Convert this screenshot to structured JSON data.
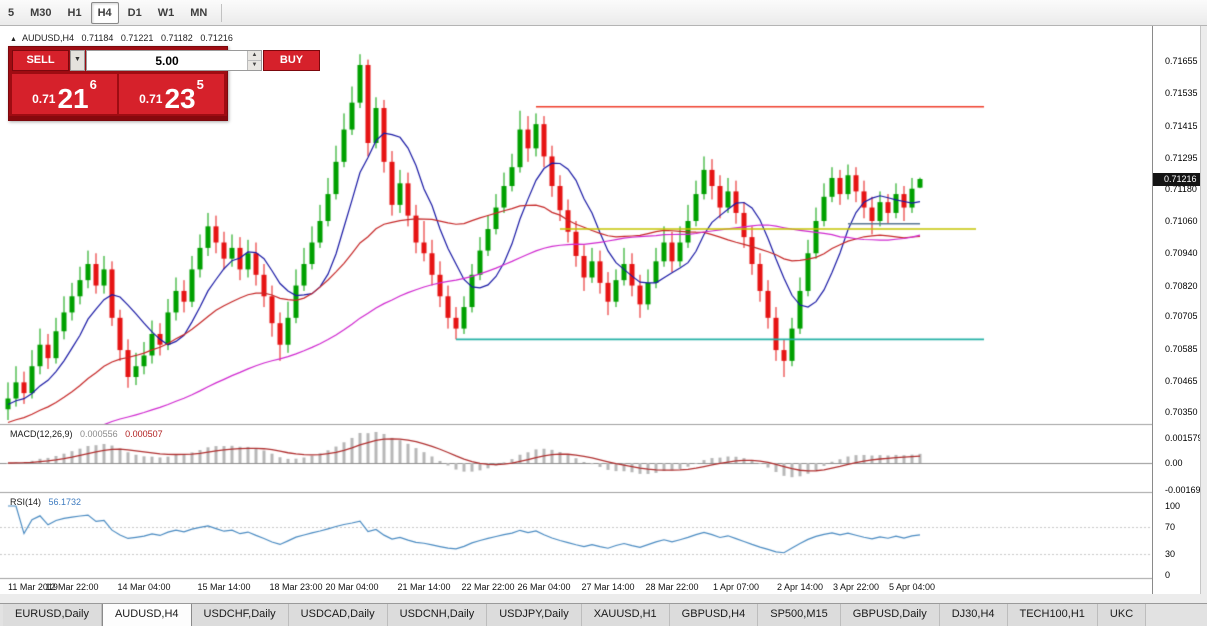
{
  "toolbar": {
    "timeframes": [
      {
        "label": "5",
        "active": false
      },
      {
        "label": "M30",
        "active": false
      },
      {
        "label": "H1",
        "active": false
      },
      {
        "label": "H4",
        "active": true
      },
      {
        "label": "D1",
        "active": false
      },
      {
        "label": "W1",
        "active": false
      },
      {
        "label": "MN",
        "active": false
      }
    ]
  },
  "chart_header": {
    "icon": "▲",
    "symbol_period": "AUDUSD,H4",
    "open": "0.71184",
    "high": "0.71221",
    "low": "0.71182",
    "close": "0.71216"
  },
  "trade_panel": {
    "volume": "5.00",
    "sell": {
      "label": "SELL",
      "price_prefix": "0.71",
      "price_main": "21",
      "price_sup": "6"
    },
    "buy": {
      "label": "BUY",
      "price_prefix": "0.71",
      "price_main": "23",
      "price_sup": "5"
    },
    "combo_arrow": "▼",
    "spin_up": "▲",
    "spin_down": "▼"
  },
  "price_axis": {
    "current": "0.71216",
    "ticks": [
      "0.71655",
      "0.71535",
      "0.71415",
      "0.71295",
      "0.71180",
      "0.71060",
      "0.70940",
      "0.70820",
      "0.70705",
      "0.70585",
      "0.70465",
      "0.70350"
    ]
  },
  "time_axis": {
    "labels": [
      {
        "text": "11 Mar 2019",
        "i": 0
      },
      {
        "text": "12 Mar 22:00",
        "i": 8
      },
      {
        "text": "14 Mar 04:00",
        "i": 17
      },
      {
        "text": "15 Mar 14:00",
        "i": 27
      },
      {
        "text": "18 Mar 23:00",
        "i": 36
      },
      {
        "text": "20 Mar 04:00",
        "i": 43
      },
      {
        "text": "21 Mar 14:00",
        "i": 52
      },
      {
        "text": "22 Mar 22:00",
        "i": 60
      },
      {
        "text": "26 Mar 04:00",
        "i": 67
      },
      {
        "text": "27 Mar 14:00",
        "i": 75
      },
      {
        "text": "28 Mar 22:00",
        "i": 83
      },
      {
        "text": "1 Apr 07:00",
        "i": 91
      },
      {
        "text": "2 Apr 14:00",
        "i": 99
      },
      {
        "text": "3 Apr 22:00",
        "i": 106
      },
      {
        "text": "5 Apr 04:00",
        "i": 113
      }
    ]
  },
  "indicators": {
    "macd": {
      "name": "MACD(12,26,9)",
      "value_main": "0.000556",
      "value_signal": "0.000507",
      "params": {
        "fast": 12,
        "slow": 26,
        "signal": 9
      },
      "axis": [
        "0.001579",
        "0.00",
        "-0.001692"
      ],
      "histogram_color": "#b8b8b8",
      "signal_color": "#b03030"
    },
    "rsi": {
      "name": "RSI(14)",
      "value": "56.1732",
      "period": 14,
      "levels": [
        70,
        30
      ],
      "axis": [
        "100",
        "70",
        "30",
        "0"
      ],
      "line_color": "#4a8bc2"
    }
  },
  "tabs": [
    {
      "label": "EURUSD,Daily",
      "active": false
    },
    {
      "label": "AUDUSD,H4",
      "active": true
    },
    {
      "label": "USDCHF,Daily",
      "active": false
    },
    {
      "label": "USDCAD,Daily",
      "active": false
    },
    {
      "label": "USDCNH,Daily",
      "active": false
    },
    {
      "label": "USDJPY,Daily",
      "active": false
    },
    {
      "label": "XAUUSD,H1",
      "active": false
    },
    {
      "label": "GBPUSD,H4",
      "active": false
    },
    {
      "label": "SP500,M15",
      "active": false
    },
    {
      "label": "GBPUSD,Daily",
      "active": false
    },
    {
      "label": "DJ30,H4",
      "active": false
    },
    {
      "label": "TECH100,H1",
      "active": false
    },
    {
      "label": "UKC",
      "active": false
    }
  ],
  "chart_data": {
    "type": "candlestick",
    "symbol": "AUDUSD",
    "timeframe": "H4",
    "y_range": {
      "min": 0.70297,
      "max": 0.71795
    },
    "colors": {
      "up": "#00a000",
      "down": "#e61414",
      "background": "#ffffff"
    },
    "moving_averages": [
      {
        "type": "sma",
        "period": 8,
        "color": "#1a1aa6"
      },
      {
        "type": "sma",
        "period": 24,
        "color": "#c62828"
      },
      {
        "type": "sma",
        "period": 60,
        "color": "#d028d0"
      }
    ],
    "objects": [
      {
        "type": "hline",
        "price": 0.71485,
        "from_bar": 66,
        "to_bar": 122,
        "color": "#f03c28"
      },
      {
        "type": "hline",
        "price": 0.7103,
        "from_bar": 69,
        "to_bar": 121,
        "color": "#c3c300"
      },
      {
        "type": "hline",
        "price": 0.7062,
        "from_bar": 56,
        "to_bar": 122,
        "color": "#26b3a7"
      },
      {
        "type": "hline",
        "price": 0.7105,
        "from_bar": 105,
        "to_bar": 114,
        "color": "#5a7894"
      }
    ],
    "candles": [
      [
        0.7036,
        0.7046,
        0.7032,
        0.704
      ],
      [
        0.704,
        0.7052,
        0.7037,
        0.7046
      ],
      [
        0.7046,
        0.705,
        0.7038,
        0.7042
      ],
      [
        0.7042,
        0.7058,
        0.704,
        0.7052
      ],
      [
        0.7052,
        0.7066,
        0.7049,
        0.706
      ],
      [
        0.706,
        0.7064,
        0.7051,
        0.7055
      ],
      [
        0.7055,
        0.707,
        0.7053,
        0.7065
      ],
      [
        0.7065,
        0.7078,
        0.7062,
        0.7072
      ],
      [
        0.7072,
        0.7083,
        0.7069,
        0.7078
      ],
      [
        0.7078,
        0.7089,
        0.7075,
        0.7084
      ],
      [
        0.7084,
        0.7095,
        0.7081,
        0.709
      ],
      [
        0.709,
        0.7094,
        0.7079,
        0.7082
      ],
      [
        0.7082,
        0.7093,
        0.7079,
        0.7088
      ],
      [
        0.7088,
        0.7091,
        0.7067,
        0.707
      ],
      [
        0.707,
        0.7073,
        0.7054,
        0.7058
      ],
      [
        0.7058,
        0.7062,
        0.7044,
        0.7048
      ],
      [
        0.7048,
        0.7057,
        0.7045,
        0.7052
      ],
      [
        0.7052,
        0.7061,
        0.7049,
        0.7056
      ],
      [
        0.7056,
        0.7069,
        0.7053,
        0.7064
      ],
      [
        0.7064,
        0.7068,
        0.7056,
        0.706
      ],
      [
        0.706,
        0.7077,
        0.7058,
        0.7072
      ],
      [
        0.7072,
        0.7085,
        0.7069,
        0.708
      ],
      [
        0.708,
        0.7084,
        0.7072,
        0.7076
      ],
      [
        0.7076,
        0.7093,
        0.7074,
        0.7088
      ],
      [
        0.7088,
        0.7101,
        0.7085,
        0.7096
      ],
      [
        0.7096,
        0.7109,
        0.7093,
        0.7104
      ],
      [
        0.7104,
        0.7108,
        0.7094,
        0.7098
      ],
      [
        0.7098,
        0.7102,
        0.7088,
        0.7092
      ],
      [
        0.7092,
        0.7101,
        0.7089,
        0.7096
      ],
      [
        0.7096,
        0.71,
        0.7084,
        0.7088
      ],
      [
        0.7088,
        0.7099,
        0.7085,
        0.7094
      ],
      [
        0.7094,
        0.7098,
        0.7082,
        0.7086
      ],
      [
        0.7086,
        0.709,
        0.7074,
        0.7078
      ],
      [
        0.7078,
        0.7082,
        0.7063,
        0.7068
      ],
      [
        0.7068,
        0.7072,
        0.7054,
        0.706
      ],
      [
        0.706,
        0.7076,
        0.7057,
        0.707
      ],
      [
        0.707,
        0.7088,
        0.7068,
        0.7082
      ],
      [
        0.7082,
        0.7096,
        0.708,
        0.709
      ],
      [
        0.709,
        0.7104,
        0.7088,
        0.7098
      ],
      [
        0.7098,
        0.7112,
        0.7096,
        0.7106
      ],
      [
        0.7106,
        0.7122,
        0.7104,
        0.7116
      ],
      [
        0.7116,
        0.7134,
        0.7114,
        0.7128
      ],
      [
        0.7128,
        0.7146,
        0.7126,
        0.714
      ],
      [
        0.714,
        0.7156,
        0.7138,
        0.715
      ],
      [
        0.715,
        0.7168,
        0.7148,
        0.7164
      ],
      [
        0.7164,
        0.7166,
        0.713,
        0.7135
      ],
      [
        0.7135,
        0.7152,
        0.7133,
        0.7148
      ],
      [
        0.7148,
        0.7151,
        0.7124,
        0.7128
      ],
      [
        0.7128,
        0.7132,
        0.7108,
        0.7112
      ],
      [
        0.7112,
        0.7125,
        0.7109,
        0.712
      ],
      [
        0.712,
        0.7124,
        0.7104,
        0.7108
      ],
      [
        0.7108,
        0.7112,
        0.7094,
        0.7098
      ],
      [
        0.7098,
        0.7106,
        0.7091,
        0.7094
      ],
      [
        0.7094,
        0.7099,
        0.7082,
        0.7086
      ],
      [
        0.7086,
        0.7091,
        0.7074,
        0.7078
      ],
      [
        0.7078,
        0.7082,
        0.7066,
        0.707
      ],
      [
        0.707,
        0.7074,
        0.7062,
        0.7066
      ],
      [
        0.7066,
        0.7078,
        0.7064,
        0.7074
      ],
      [
        0.7074,
        0.709,
        0.7072,
        0.7086
      ],
      [
        0.7086,
        0.71,
        0.7084,
        0.7095
      ],
      [
        0.7095,
        0.7108,
        0.7093,
        0.7103
      ],
      [
        0.7103,
        0.7116,
        0.7101,
        0.7111
      ],
      [
        0.7111,
        0.7124,
        0.7109,
        0.7119
      ],
      [
        0.7119,
        0.7131,
        0.7117,
        0.7126
      ],
      [
        0.7126,
        0.7147,
        0.7124,
        0.714
      ],
      [
        0.714,
        0.7145,
        0.7128,
        0.7133
      ],
      [
        0.7133,
        0.7146,
        0.713,
        0.7142
      ],
      [
        0.7142,
        0.7145,
        0.7126,
        0.713
      ],
      [
        0.713,
        0.7134,
        0.7115,
        0.7119
      ],
      [
        0.7119,
        0.7123,
        0.7106,
        0.711
      ],
      [
        0.711,
        0.7114,
        0.7098,
        0.7102
      ],
      [
        0.7102,
        0.7106,
        0.7089,
        0.7093
      ],
      [
        0.7093,
        0.7097,
        0.708,
        0.7085
      ],
      [
        0.7085,
        0.7096,
        0.7083,
        0.7091
      ],
      [
        0.7091,
        0.7095,
        0.7079,
        0.7083
      ],
      [
        0.7083,
        0.7087,
        0.7071,
        0.7076
      ],
      [
        0.7076,
        0.7088,
        0.7074,
        0.7084
      ],
      [
        0.7084,
        0.7096,
        0.7082,
        0.709
      ],
      [
        0.709,
        0.7094,
        0.7078,
        0.7082
      ],
      [
        0.7082,
        0.7086,
        0.707,
        0.7075
      ],
      [
        0.7075,
        0.7088,
        0.7073,
        0.7083
      ],
      [
        0.7083,
        0.7096,
        0.7081,
        0.7091
      ],
      [
        0.7091,
        0.7104,
        0.7089,
        0.7098
      ],
      [
        0.7098,
        0.7102,
        0.7087,
        0.7091
      ],
      [
        0.7091,
        0.7104,
        0.7089,
        0.7098
      ],
      [
        0.7098,
        0.7112,
        0.7096,
        0.7106
      ],
      [
        0.7106,
        0.7121,
        0.7104,
        0.7116
      ],
      [
        0.7116,
        0.713,
        0.7114,
        0.7125
      ],
      [
        0.7125,
        0.7129,
        0.7114,
        0.7119
      ],
      [
        0.7119,
        0.7123,
        0.7107,
        0.7111
      ],
      [
        0.7111,
        0.7122,
        0.7109,
        0.7117
      ],
      [
        0.7117,
        0.7121,
        0.7105,
        0.7109
      ],
      [
        0.7109,
        0.7113,
        0.7096,
        0.71
      ],
      [
        0.71,
        0.7104,
        0.7086,
        0.709
      ],
      [
        0.709,
        0.7094,
        0.7076,
        0.708
      ],
      [
        0.708,
        0.7084,
        0.7066,
        0.707
      ],
      [
        0.707,
        0.7074,
        0.7054,
        0.7058
      ],
      [
        0.7058,
        0.7062,
        0.7048,
        0.7054
      ],
      [
        0.7054,
        0.707,
        0.7052,
        0.7066
      ],
      [
        0.7066,
        0.7085,
        0.7064,
        0.708
      ],
      [
        0.708,
        0.7099,
        0.7078,
        0.7094
      ],
      [
        0.7094,
        0.7111,
        0.7092,
        0.7106
      ],
      [
        0.7106,
        0.712,
        0.7104,
        0.7115
      ],
      [
        0.7115,
        0.7126,
        0.7113,
        0.7122
      ],
      [
        0.7122,
        0.7125,
        0.7112,
        0.7116
      ],
      [
        0.7116,
        0.7127,
        0.7114,
        0.7123
      ],
      [
        0.7123,
        0.7126,
        0.7113,
        0.7117
      ],
      [
        0.7117,
        0.7121,
        0.7107,
        0.7111
      ],
      [
        0.7111,
        0.7115,
        0.7101,
        0.7106
      ],
      [
        0.7106,
        0.7117,
        0.7104,
        0.7113
      ],
      [
        0.7113,
        0.7116,
        0.7105,
        0.7109
      ],
      [
        0.7109,
        0.712,
        0.7107,
        0.7116
      ],
      [
        0.7116,
        0.7119,
        0.7106,
        0.7111
      ],
      [
        0.7111,
        0.7122,
        0.7109,
        0.7118
      ],
      [
        0.71184,
        0.71221,
        0.71182,
        0.71216
      ]
    ]
  }
}
